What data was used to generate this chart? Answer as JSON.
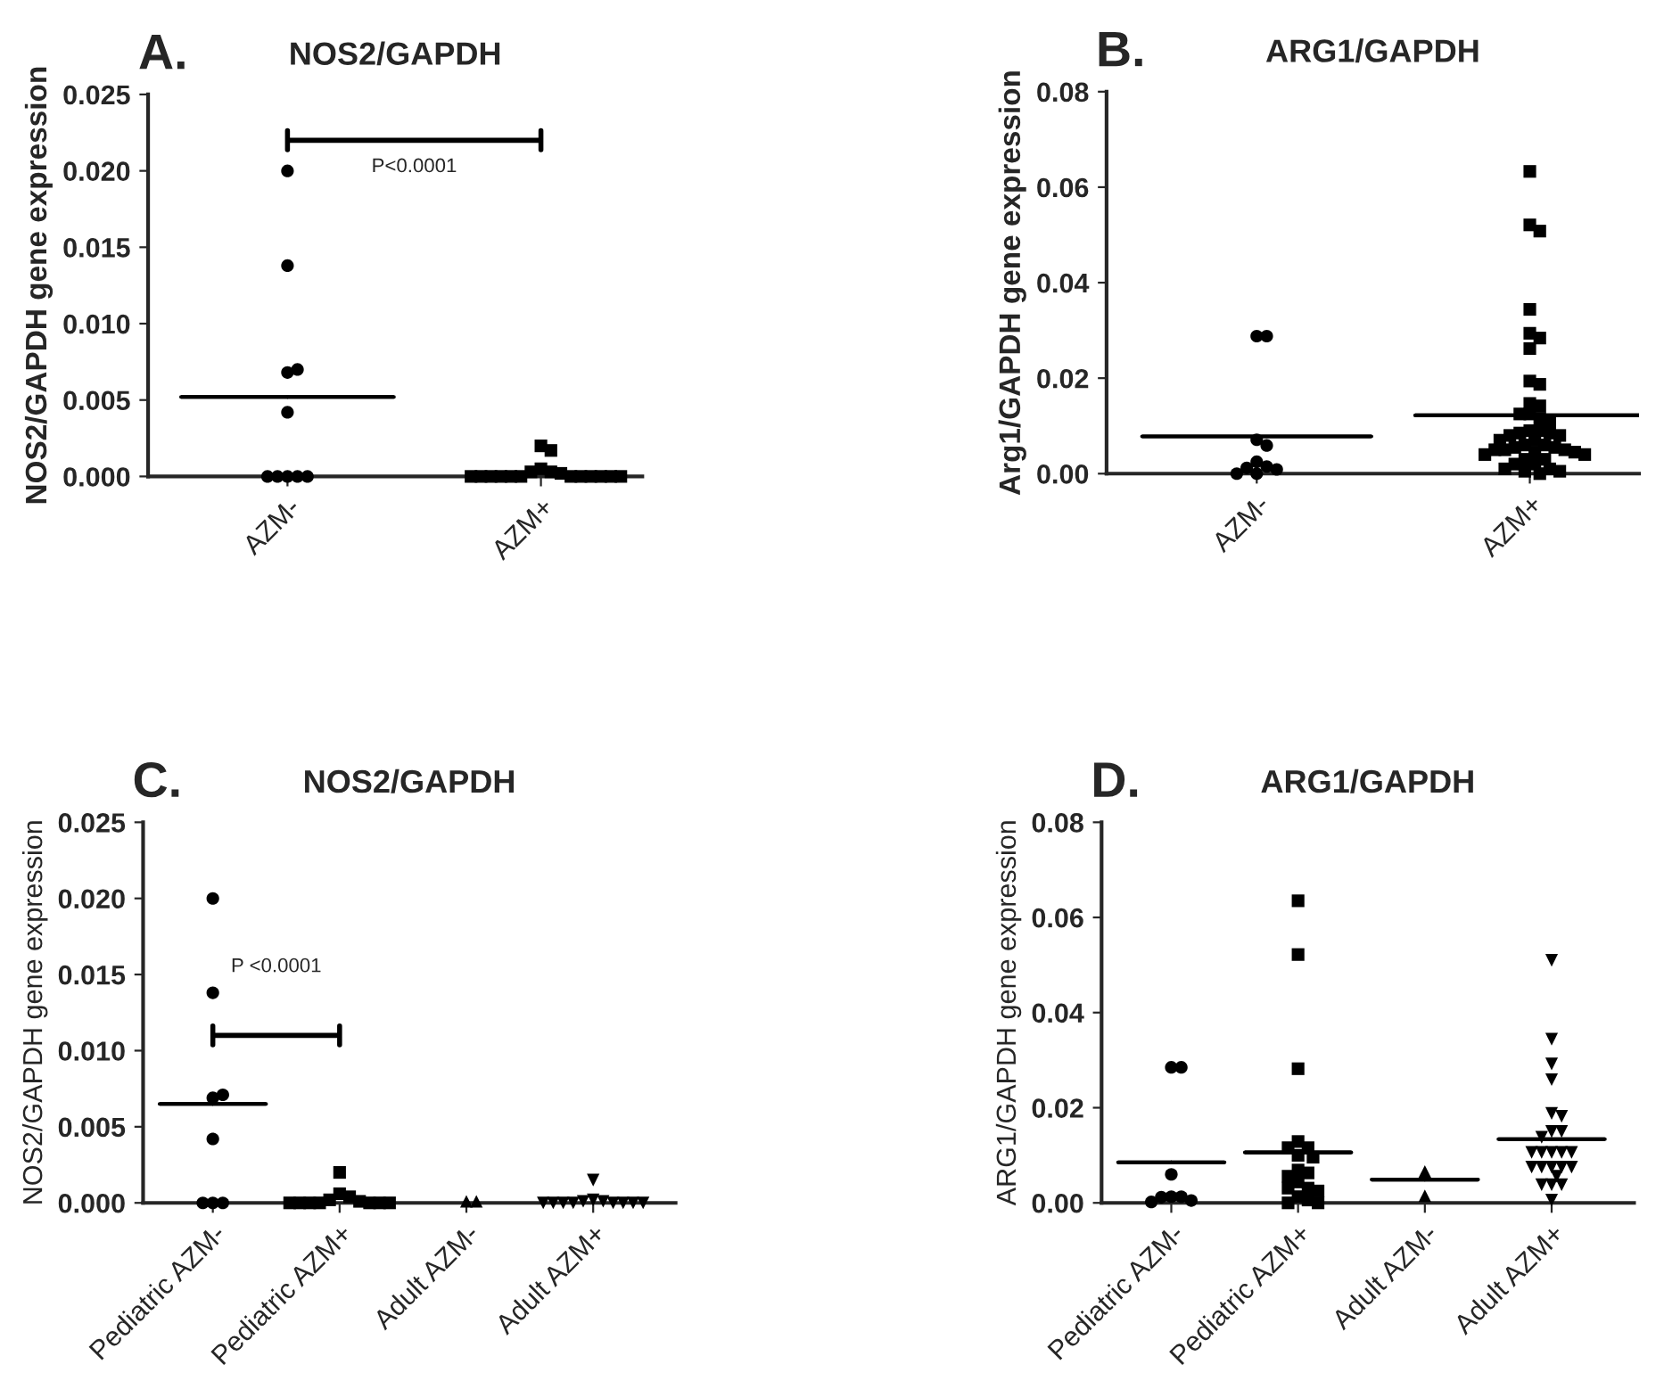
{
  "chart_data": [
    {
      "type": "scatter",
      "title": "NOS2/GAPDH",
      "ylabel": "NOS2/GAPDH gene expression",
      "categories": [
        "AZM-",
        "AZM+"
      ],
      "ylim": [
        0,
        0.025
      ],
      "yticks": [
        {
          "value": 0,
          "label": "0.000"
        },
        {
          "value": 0.005,
          "label": "0.005"
        },
        {
          "value": 0.01,
          "label": "0.010"
        },
        {
          "value": 0.015,
          "label": "0.015"
        },
        {
          "value": 0.02,
          "label": "0.020"
        },
        {
          "value": 0.025,
          "label": "0.025"
        }
      ],
      "grid": false,
      "legend": false,
      "annotations": [
        "A.",
        "P<0.0001"
      ],
      "series": [
        {
          "marker": "circle",
          "color": "#000000",
          "x": [
            "AZM-",
            "AZM-",
            "AZM-",
            "AZM-",
            "AZM-",
            "AZM-",
            "AZM-",
            "AZM-",
            "AZM-",
            "AZM-"
          ],
          "values": [
            0.02,
            0.0138,
            0.0068,
            0.007,
            0.0042,
            0,
            0,
            0,
            0,
            0
          ]
        },
        {
          "marker": "square",
          "color": "#000000",
          "x": [
            "AZM+",
            "AZM+",
            "AZM+",
            "AZM+",
            "AZM+",
            "AZM+",
            "AZM+",
            "AZM+",
            "AZM+",
            "AZM+",
            "AZM+",
            "AZM+",
            "AZM+",
            "AZM+",
            "AZM+",
            "AZM+",
            "AZM+",
            "AZM+"
          ],
          "values": [
            0.002,
            0.0017,
            0.0005,
            0.0003,
            0.0003,
            0.0002,
            0,
            0,
            0,
            0,
            0,
            0,
            0,
            0,
            0,
            0,
            0,
            0
          ]
        },
        {
          "type": "box",
          "color": "#000000",
          "boxes": [
            {
              "low": 0.0052,
              "q1": 0.0052,
              "median": 0.0052,
              "q3": 0.0052,
              "high": 0.0052
            },
            null
          ]
        }
      ]
    },
    {
      "type": "scatter",
      "title": "ARG1/GAPDH",
      "ylabel": "Arg1/GAPDH gene expression",
      "categories": [
        "AZM-",
        "AZM+"
      ],
      "ylim": [
        0,
        0.08
      ],
      "yticks": [
        {
          "value": 0,
          "label": "0.00"
        },
        {
          "value": 0.02,
          "label": "0.02"
        },
        {
          "value": 0.04,
          "label": "0.04"
        },
        {
          "value": 0.06,
          "label": "0.06"
        },
        {
          "value": 0.08,
          "label": "0.08"
        }
      ],
      "grid": false,
      "legend": false,
      "annotations": [
        "B."
      ],
      "series": [
        {
          "marker": "circle",
          "color": "#000000",
          "x": [
            "AZM-",
            "AZM-",
            "AZM-",
            "AZM-",
            "AZM-",
            "AZM-",
            "AZM-",
            "AZM-",
            "AZM-",
            "AZM-"
          ],
          "values": [
            0.0288,
            0.0288,
            0.0071,
            0.0059,
            0.0025,
            0.0015,
            0.0012,
            0.0009,
            0,
            0
          ]
        },
        {
          "marker": "square",
          "color": "#000000",
          "x": [
            "AZM+",
            "AZM+",
            "AZM+",
            "AZM+",
            "AZM+",
            "AZM+",
            "AZM+",
            "AZM+",
            "AZM+",
            "AZM+",
            "AZM+",
            "AZM+",
            "AZM+",
            "AZM+",
            "AZM+",
            "AZM+",
            "AZM+",
            "AZM+",
            "AZM+",
            "AZM+",
            "AZM+",
            "AZM+",
            "AZM+",
            "AZM+",
            "AZM+",
            "AZM+",
            "AZM+",
            "AZM+",
            "AZM+",
            "AZM+",
            "AZM+",
            "AZM+",
            "AZM+",
            "AZM+",
            "AZM+",
            "AZM+",
            "AZM+",
            "AZM+",
            "AZM+",
            "AZM+",
            "AZM+",
            "AZM+",
            "AZM+"
          ],
          "values": [
            0.0633,
            0.0521,
            0.0508,
            0.0344,
            0.0294,
            0.0284,
            0.0262,
            0.0194,
            0.0187,
            0.0147,
            0.0142,
            0.0125,
            0.0125,
            0.0116,
            0.0108,
            0.009,
            0.009,
            0.0085,
            0.0085,
            0.008,
            0.008,
            0.007,
            0.007,
            0.006,
            0.006,
            0.0055,
            0.0055,
            0.005,
            0.005,
            0.005,
            0.0045,
            0.0045,
            0.004,
            0.004,
            0.003,
            0.003,
            0.002,
            0.002,
            0.001,
            0.001,
            0.0005,
            0.0005,
            0
          ]
        },
        {
          "type": "box",
          "color": "#000000",
          "boxes": [
            {
              "low": 0.0078,
              "q1": 0.0078,
              "median": 0.0078,
              "q3": 0.0078,
              "high": 0.0078
            },
            {
              "low": 0.0122,
              "q1": 0.0122,
              "median": 0.0122,
              "q3": 0.0122,
              "high": 0.0122
            }
          ]
        }
      ]
    },
    {
      "type": "scatter",
      "title": "NOS2/GAPDH",
      "ylabel": "NOS2/GAPDH gene expression",
      "categories": [
        "Pediatric AZM-",
        "Pediatric AZM+",
        "Adult AZM-",
        "Adult AZM+"
      ],
      "ylim": [
        0,
        0.025
      ],
      "yticks": [
        {
          "value": 0,
          "label": "0.000"
        },
        {
          "value": 0.005,
          "label": "0.005"
        },
        {
          "value": 0.01,
          "label": "0.010"
        },
        {
          "value": 0.015,
          "label": "0.015"
        },
        {
          "value": 0.02,
          "label": "0.020"
        },
        {
          "value": 0.025,
          "label": "0.025"
        }
      ],
      "grid": false,
      "legend": false,
      "annotations": [
        "C.",
        "P <0.0001"
      ],
      "series": [
        {
          "marker": "circle",
          "color": "#000000",
          "x": [
            "Pediatric AZM-",
            "Pediatric AZM-",
            "Pediatric AZM-",
            "Pediatric AZM-",
            "Pediatric AZM-",
            "Pediatric AZM-",
            "Pediatric AZM-",
            "Pediatric AZM-"
          ],
          "values": [
            0.02,
            0.0138,
            0.0069,
            0.0071,
            0.0042,
            0,
            0,
            0
          ]
        },
        {
          "marker": "square",
          "color": "#000000",
          "x": [
            "Pediatric AZM+",
            "Pediatric AZM+",
            "Pediatric AZM+",
            "Pediatric AZM+",
            "Pediatric AZM+",
            "Pediatric AZM+",
            "Pediatric AZM+",
            "Pediatric AZM+",
            "Pediatric AZM+",
            "Pediatric AZM+",
            "Pediatric AZM+",
            "Pediatric AZM+"
          ],
          "values": [
            0.002,
            0.0006,
            0.0004,
            0.0002,
            0.0001,
            0,
            0,
            0,
            0,
            0,
            0,
            0
          ]
        },
        {
          "marker": "triangle",
          "color": "#000000",
          "x": [
            "Adult AZM-",
            "Adult AZM-"
          ],
          "values": [
            0.0001,
            0.0001
          ]
        },
        {
          "marker": "triangle_down",
          "color": "#000000",
          "x": [
            "Adult AZM+",
            "Adult AZM+",
            "Adult AZM+",
            "Adult AZM+",
            "Adult AZM+",
            "Adult AZM+",
            "Adult AZM+",
            "Adult AZM+",
            "Adult AZM+",
            "Adult AZM+",
            "Adult AZM+",
            "Adult AZM+"
          ],
          "values": [
            0.0015,
            0.0002,
            0.0001,
            0.0001,
            0,
            0,
            0,
            0,
            0,
            0,
            0,
            0
          ]
        },
        {
          "type": "box",
          "color": "#000000",
          "boxes": [
            {
              "low": 0.0065,
              "q1": 0.0065,
              "median": 0.0065,
              "q3": 0.0065,
              "high": 0.0065
            },
            null,
            null,
            null
          ]
        }
      ]
    },
    {
      "type": "scatter",
      "title": "ARG1/GAPDH",
      "ylabel": "ARG1/GAPDH gene expression",
      "categories": [
        "Pediatric AZM-",
        "Pediatric AZM+",
        "Adult AZM-",
        "Adult AZM+"
      ],
      "ylim": [
        0,
        0.08
      ],
      "yticks": [
        {
          "value": 0,
          "label": "0.00"
        },
        {
          "value": 0.02,
          "label": "0.02"
        },
        {
          "value": 0.04,
          "label": "0.04"
        },
        {
          "value": 0.06,
          "label": "0.06"
        },
        {
          "value": 0.08,
          "label": "0.08"
        }
      ],
      "grid": false,
      "legend": false,
      "annotations": [
        "D."
      ],
      "series": [
        {
          "marker": "circle",
          "color": "#000000",
          "x": [
            "Pediatric AZM-",
            "Pediatric AZM-",
            "Pediatric AZM-",
            "Pediatric AZM-",
            "Pediatric AZM-",
            "Pediatric AZM-",
            "Pediatric AZM-",
            "Pediatric AZM-"
          ],
          "values": [
            0.0285,
            0.0285,
            0.006,
            0.0013,
            0.0013,
            0.0012,
            0.0005,
            0.0002
          ]
        },
        {
          "marker": "square",
          "color": "#000000",
          "x": [
            "Pediatric AZM+",
            "Pediatric AZM+",
            "Pediatric AZM+",
            "Pediatric AZM+",
            "Pediatric AZM+",
            "Pediatric AZM+",
            "Pediatric AZM+",
            "Pediatric AZM+",
            "Pediatric AZM+",
            "Pediatric AZM+",
            "Pediatric AZM+",
            "Pediatric AZM+",
            "Pediatric AZM+",
            "Pediatric AZM+",
            "Pediatric AZM+",
            "Pediatric AZM+",
            "Pediatric AZM+",
            "Pediatric AZM+",
            "Pediatric AZM+"
          ],
          "values": [
            0.0635,
            0.0522,
            0.0282,
            0.0129,
            0.0116,
            0.0116,
            0.01,
            0.0096,
            0.0069,
            0.0063,
            0.0056,
            0.0044,
            0.0031,
            0.0031,
            0.0025,
            0.0013,
            0.0006,
            0,
            0
          ]
        },
        {
          "marker": "triangle",
          "color": "#000000",
          "x": [
            "Adult AZM-",
            "Adult AZM-"
          ],
          "values": [
            0.0066,
            0.0015
          ]
        },
        {
          "marker": "triangle_down",
          "color": "#000000",
          "x": [
            "Adult AZM+",
            "Adult AZM+",
            "Adult AZM+",
            "Adult AZM+",
            "Adult AZM+",
            "Adult AZM+",
            "Adult AZM+",
            "Adult AZM+",
            "Adult AZM+",
            "Adult AZM+",
            "Adult AZM+",
            "Adult AZM+",
            "Adult AZM+",
            "Adult AZM+",
            "Adult AZM+",
            "Adult AZM+",
            "Adult AZM+",
            "Adult AZM+",
            "Adult AZM+",
            "Adult AZM+",
            "Adult AZM+",
            "Adult AZM+",
            "Adult AZM+",
            "Adult AZM+"
          ],
          "values": [
            0.051,
            0.0344,
            0.0292,
            0.0259,
            0.0188,
            0.0182,
            0.015,
            0.015,
            0.0138,
            0.0106,
            0.0106,
            0.0106,
            0.0106,
            0.0106,
            0.0075,
            0.0075,
            0.0075,
            0.0075,
            0.0075,
            0.0056,
            0.0038,
            0.0038,
            0.0038,
            0.0006
          ]
        },
        {
          "type": "box",
          "color": "#000000",
          "boxes": [
            {
              "low": 0.0085,
              "q1": 0.0085,
              "median": 0.0085,
              "q3": 0.0085,
              "high": 0.0085
            },
            {
              "low": 0.0106,
              "q1": 0.0106,
              "median": 0.0106,
              "q3": 0.0106,
              "high": 0.0106
            },
            {
              "low": 0.0049,
              "q1": 0.0049,
              "median": 0.0049,
              "q3": 0.0049,
              "high": 0.0049
            },
            {
              "low": 0.0134,
              "q1": 0.0134,
              "median": 0.0134,
              "q3": 0.0134,
              "high": 0.0134
            }
          ]
        }
      ]
    }
  ]
}
